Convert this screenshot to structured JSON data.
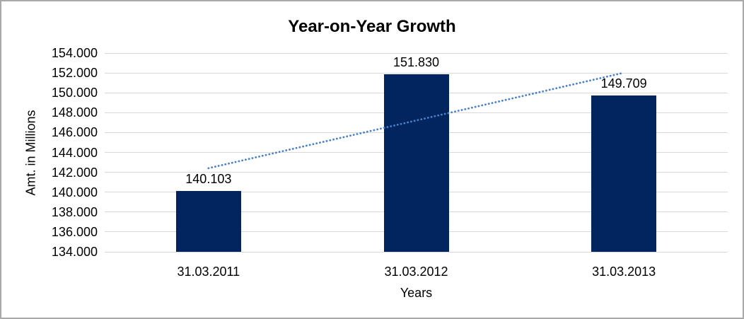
{
  "chart_data": {
    "type": "bar",
    "title": "Year-on-Year Growth",
    "xlabel": "Years",
    "ylabel": "Amt. in Millions",
    "categories": [
      "31.03.2011",
      "31.03.2012",
      "31.03.2013"
    ],
    "values": [
      140.103,
      151.83,
      149.709
    ],
    "data_labels": [
      "140.103",
      "151.830",
      "149.709"
    ],
    "ylim": [
      134,
      154
    ],
    "ytick_step": 2,
    "ytick_labels": [
      "154.000",
      "152.000",
      "150.000",
      "148.000",
      "146.000",
      "144.000",
      "142.000",
      "140.000",
      "138.000",
      "136.000",
      "134.000"
    ],
    "grid": true,
    "legend": "none",
    "trendline": {
      "type": "linear",
      "style": "dotted",
      "start_value": 142.411,
      "end_value": 152.017
    },
    "colors": {
      "bar": "#02245f",
      "trendline": "#4a80c6",
      "gridline": "#d9d9d9",
      "text": "#000000",
      "frame": "#a9a9a9"
    }
  }
}
